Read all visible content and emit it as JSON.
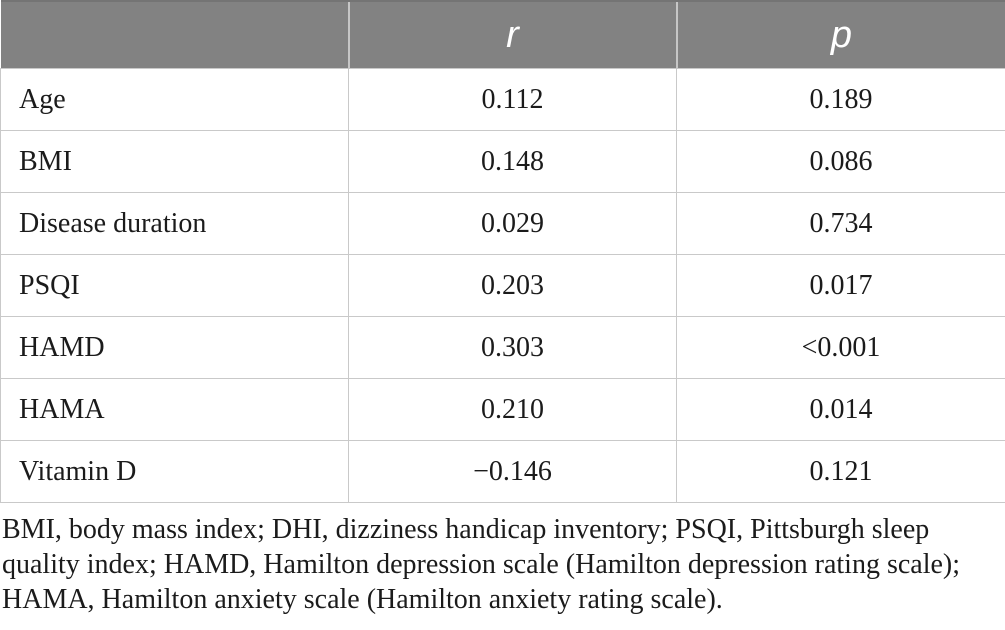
{
  "table": {
    "columns": {
      "label": "",
      "r": "r",
      "p": "p"
    },
    "rows": [
      {
        "label": "Age",
        "r": "0.112",
        "p": "0.189"
      },
      {
        "label": "BMI",
        "r": "0.148",
        "p": "0.086"
      },
      {
        "label": "Disease duration",
        "r": "0.029",
        "p": "0.734"
      },
      {
        "label": "PSQI",
        "r": "0.203",
        "p": "0.017"
      },
      {
        "label": "HAMD",
        "r": "0.303",
        "p": "<0.001"
      },
      {
        "label": "HAMA",
        "r": "0.210",
        "p": "0.014"
      },
      {
        "label": "Vitamin D",
        "r": "−0.146",
        "p": "0.121"
      }
    ],
    "footnote": "BMI, body mass index; DHI, dizziness handicap inventory; PSQI, Pittsburgh sleep quality index; HAMD, Hamilton depression scale (Hamilton depression rating scale); HAMA, Hamilton anxiety scale (Hamilton anxiety rating scale)."
  },
  "chart_data": {
    "type": "table",
    "title": "",
    "columns": [
      "",
      "r",
      "p"
    ],
    "rows": [
      [
        "Age",
        "0.112",
        "0.189"
      ],
      [
        "BMI",
        "0.148",
        "0.086"
      ],
      [
        "Disease duration",
        "0.029",
        "0.734"
      ],
      [
        "PSQI",
        "0.203",
        "0.017"
      ],
      [
        "HAMD",
        "0.303",
        "<0.001"
      ],
      [
        "HAMA",
        "0.210",
        "0.014"
      ],
      [
        "Vitamin D",
        "−0.146",
        "0.121"
      ]
    ]
  },
  "colors": {
    "header_bg": "#828282",
    "header_text": "#ffffff",
    "grid_border": "#c9c9c9",
    "body_text": "#1b1b1b"
  }
}
